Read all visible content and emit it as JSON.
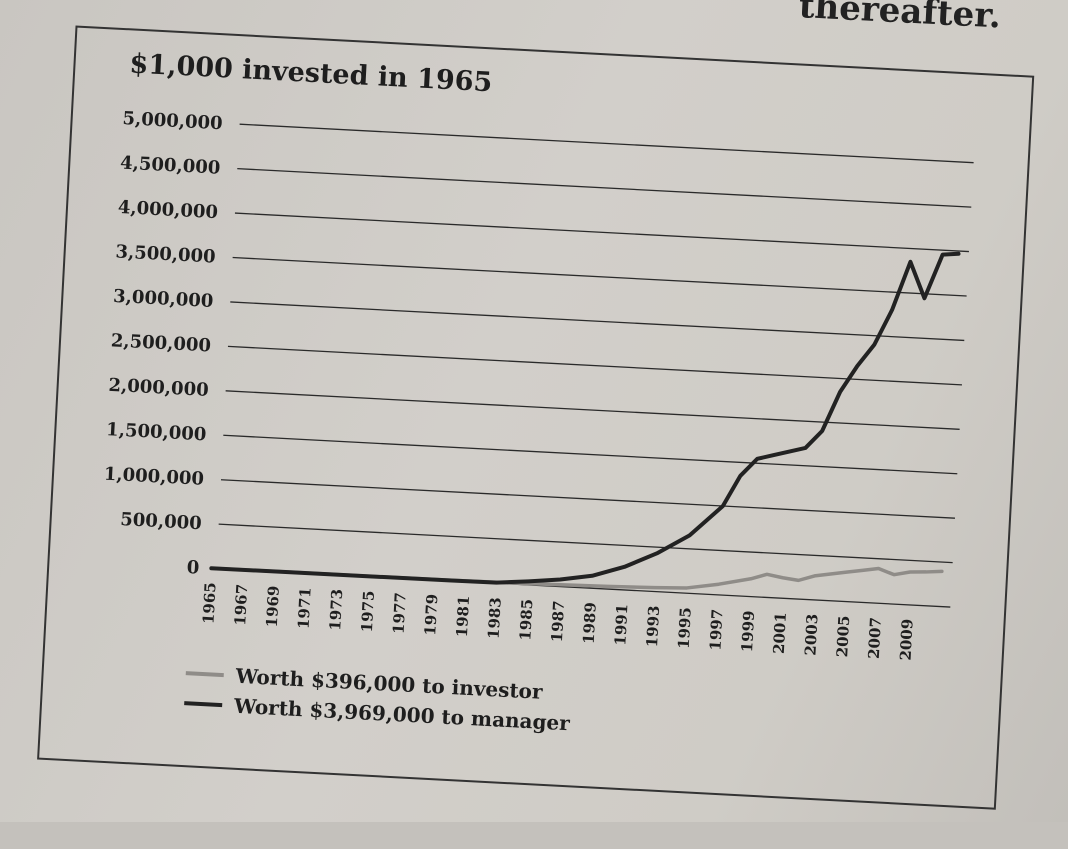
{
  "page": {
    "running_text": "thereafter."
  },
  "chart_data": {
    "type": "line",
    "title": "$1,000 invested in 1965",
    "xlabel": "",
    "ylabel": "",
    "ylim": [
      0,
      5000000
    ],
    "y_ticks": [
      0,
      500000,
      1000000,
      1500000,
      2000000,
      2500000,
      3000000,
      3500000,
      4000000,
      4500000,
      5000000
    ],
    "y_tick_labels": [
      "0",
      "500,000",
      "1,000,000",
      "1,500,000",
      "2,000,000",
      "2,500,000",
      "3,000,000",
      "3,500,000",
      "4,000,000",
      "4,500,000",
      "5,000,000"
    ],
    "x_tick_labels": [
      "1965",
      "1967",
      "1969",
      "1971",
      "1973",
      "1975",
      "1977",
      "1979",
      "1981",
      "1983",
      "1985",
      "1987",
      "1989",
      "1991",
      "1993",
      "1995",
      "1997",
      "1999",
      "2001",
      "2003",
      "2005",
      "2007",
      "2009"
    ],
    "xlim": [
      1965,
      2011
    ],
    "grid": true,
    "series": [
      {
        "name": "Worth $396,000 to investor",
        "color": "#8f8c88",
        "x": [
          1965,
          1970,
          1975,
          1980,
          1985,
          1990,
          1993,
          1995,
          1997,
          1999,
          2000,
          2001,
          2002,
          2003,
          2004,
          2005,
          2006,
          2007,
          2008,
          2009,
          2010,
          2011
        ],
        "values": [
          1000,
          3000,
          5000,
          8000,
          15000,
          30000,
          45000,
          60000,
          120000,
          200000,
          260000,
          230000,
          210000,
          270000,
          300000,
          330000,
          360000,
          390000,
          330000,
          370000,
          380000,
          396000
        ]
      },
      {
        "name": "Worth $3,969,000 to manager",
        "color": "#222222",
        "x": [
          1965,
          1970,
          1975,
          1980,
          1983,
          1985,
          1987,
          1989,
          1991,
          1993,
          1995,
          1997,
          1998,
          1999,
          2000,
          2001,
          2002,
          2003,
          2004,
          2005,
          2006,
          2007,
          2008,
          2009,
          2010,
          2011
        ],
        "values": [
          1000,
          2000,
          3000,
          5000,
          8000,
          40000,
          80000,
          140000,
          260000,
          430000,
          650000,
          1000000,
          1350000,
          1550000,
          1600000,
          1650000,
          1700000,
          1900000,
          2350000,
          2650000,
          2900000,
          3300000,
          3850000,
          3450000,
          3950000,
          3969000
        ]
      }
    ]
  }
}
